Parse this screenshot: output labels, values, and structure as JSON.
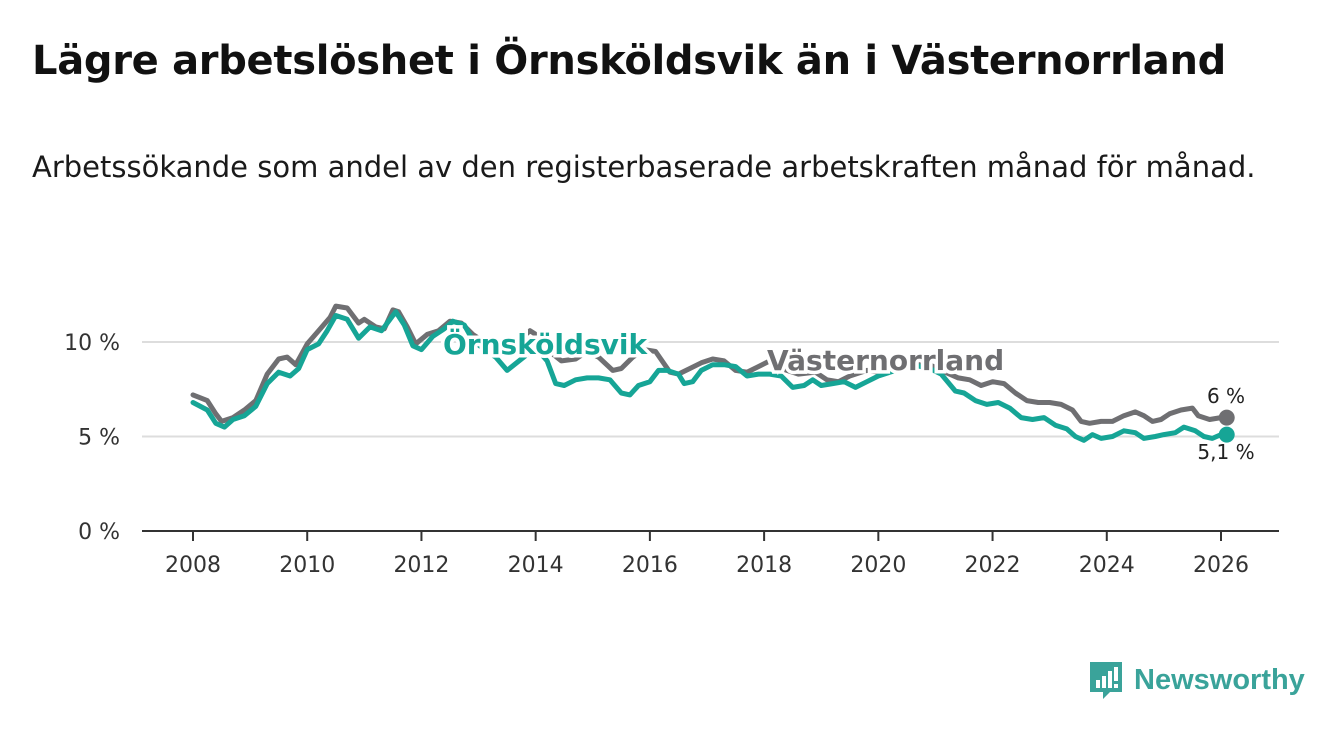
{
  "title": "Lägre arbetslöshet i Örnsköldsvik än i Västernorrland",
  "subtitle": "Arbetssökande som andel av den registerbaserade arbetskraften månad för månad.",
  "colors": {
    "ornskoldsvik": "#16a596",
    "vasternorrland": "#6f6f72",
    "grid": "#dddddd",
    "axis": "#333333",
    "logo": "#3aa39a"
  },
  "brand": {
    "name": "Newsworthy",
    "icon": "bar-chart-icon"
  },
  "chart_data": {
    "type": "line",
    "title": "Lägre arbetslöshet i Örnsköldsvik än i Västernorrland",
    "subtitle": "Arbetssökande som andel av den registerbaserade arbetskraften månad för månad.",
    "xlabel": "",
    "ylabel": "",
    "xlim": [
      2007.7,
      2027
    ],
    "ylim": [
      0,
      12
    ],
    "x_ticks": [
      2008,
      2010,
      2012,
      2014,
      2016,
      2018,
      2020,
      2022,
      2024,
      2026
    ],
    "x_tick_labels": [
      "2008",
      "2010",
      "2012",
      "2014",
      "2016",
      "2018",
      "2020",
      "2022",
      "2024",
      "2026"
    ],
    "y_ticks": [
      0,
      5,
      10
    ],
    "y_tick_labels": [
      "0 %",
      "5 %",
      "10 %"
    ],
    "grid": true,
    "series": [
      {
        "name": "Västernorrland",
        "label": "Västernorrland",
        "end_label": "6 %",
        "points": [
          [
            2008.0,
            7.2
          ],
          [
            2008.25,
            6.9
          ],
          [
            2008.4,
            6.2
          ],
          [
            2008.5,
            5.8
          ],
          [
            2008.7,
            6.0
          ],
          [
            2008.9,
            6.4
          ],
          [
            2009.1,
            6.9
          ],
          [
            2009.3,
            8.3
          ],
          [
            2009.5,
            9.1
          ],
          [
            2009.65,
            9.2
          ],
          [
            2009.8,
            8.8
          ],
          [
            2010.0,
            9.9
          ],
          [
            2010.2,
            10.6
          ],
          [
            2010.4,
            11.3
          ],
          [
            2010.5,
            11.9
          ],
          [
            2010.7,
            11.8
          ],
          [
            2010.9,
            11.0
          ],
          [
            2011.0,
            11.2
          ],
          [
            2011.2,
            10.8
          ],
          [
            2011.35,
            10.7
          ],
          [
            2011.5,
            11.7
          ],
          [
            2011.6,
            11.6
          ],
          [
            2011.75,
            10.8
          ],
          [
            2011.9,
            9.9
          ],
          [
            2012.1,
            10.4
          ],
          [
            2012.3,
            10.6
          ],
          [
            2012.5,
            11.1
          ],
          [
            2012.7,
            11.0
          ],
          [
            2012.9,
            10.4
          ],
          [
            2013.1,
            10.0
          ],
          [
            2013.3,
            9.5
          ],
          [
            2013.6,
            9.8
          ],
          [
            2013.9,
            10.6
          ],
          [
            2014.0,
            10.4
          ],
          [
            2014.2,
            9.6
          ],
          [
            2014.45,
            9.0
          ],
          [
            2014.7,
            9.1
          ],
          [
            2014.9,
            9.5
          ],
          [
            2015.1,
            9.2
          ],
          [
            2015.35,
            8.5
          ],
          [
            2015.5,
            8.6
          ],
          [
            2015.7,
            9.2
          ],
          [
            2015.9,
            9.6
          ],
          [
            2016.1,
            9.5
          ],
          [
            2016.35,
            8.4
          ],
          [
            2016.5,
            8.3
          ],
          [
            2016.7,
            8.6
          ],
          [
            2016.9,
            8.9
          ],
          [
            2017.1,
            9.1
          ],
          [
            2017.3,
            9.0
          ],
          [
            2017.5,
            8.5
          ],
          [
            2017.7,
            8.4
          ],
          [
            2017.9,
            8.7
          ],
          [
            2018.1,
            9.0
          ],
          [
            2018.3,
            8.6
          ],
          [
            2018.6,
            8.3
          ],
          [
            2018.9,
            8.4
          ],
          [
            2019.1,
            8.0
          ],
          [
            2019.3,
            7.9
          ],
          [
            2019.5,
            8.2
          ],
          [
            2019.8,
            8.5
          ],
          [
            2020.0,
            8.4
          ],
          [
            2020.3,
            8.7
          ],
          [
            2020.6,
            9.0
          ],
          [
            2020.9,
            8.8
          ],
          [
            2021.1,
            8.5
          ],
          [
            2021.4,
            8.1
          ],
          [
            2021.6,
            8.0
          ],
          [
            2021.8,
            7.7
          ],
          [
            2022.0,
            7.9
          ],
          [
            2022.2,
            7.8
          ],
          [
            2022.4,
            7.3
          ],
          [
            2022.6,
            6.9
          ],
          [
            2022.8,
            6.8
          ],
          [
            2023.0,
            6.8
          ],
          [
            2023.2,
            6.7
          ],
          [
            2023.4,
            6.4
          ],
          [
            2023.55,
            5.8
          ],
          [
            2023.7,
            5.7
          ],
          [
            2023.9,
            5.8
          ],
          [
            2024.1,
            5.8
          ],
          [
            2024.3,
            6.1
          ],
          [
            2024.5,
            6.3
          ],
          [
            2024.65,
            6.1
          ],
          [
            2024.8,
            5.8
          ],
          [
            2024.95,
            5.9
          ],
          [
            2025.1,
            6.2
          ],
          [
            2025.3,
            6.4
          ],
          [
            2025.5,
            6.5
          ],
          [
            2025.6,
            6.1
          ],
          [
            2025.8,
            5.9
          ],
          [
            2026.0,
            6.0
          ],
          [
            2026.1,
            6.0
          ]
        ]
      },
      {
        "name": "Örnsköldsvik",
        "label": "Örnsköldsvik",
        "end_label": "5,1 %",
        "points": [
          [
            2008.0,
            6.8
          ],
          [
            2008.25,
            6.4
          ],
          [
            2008.4,
            5.7
          ],
          [
            2008.55,
            5.5
          ],
          [
            2008.7,
            5.9
          ],
          [
            2008.9,
            6.1
          ],
          [
            2009.1,
            6.6
          ],
          [
            2009.3,
            7.8
          ],
          [
            2009.5,
            8.4
          ],
          [
            2009.7,
            8.2
          ],
          [
            2009.85,
            8.6
          ],
          [
            2010.0,
            9.6
          ],
          [
            2010.2,
            9.9
          ],
          [
            2010.35,
            10.6
          ],
          [
            2010.5,
            11.4
          ],
          [
            2010.7,
            11.2
          ],
          [
            2010.9,
            10.2
          ],
          [
            2011.1,
            10.8
          ],
          [
            2011.3,
            10.6
          ],
          [
            2011.55,
            11.6
          ],
          [
            2011.7,
            10.9
          ],
          [
            2011.85,
            9.8
          ],
          [
            2012.0,
            9.6
          ],
          [
            2012.2,
            10.3
          ],
          [
            2012.4,
            10.7
          ],
          [
            2012.55,
            11.1
          ],
          [
            2012.75,
            10.9
          ],
          [
            2012.9,
            10.1
          ],
          [
            2013.1,
            9.6
          ],
          [
            2013.3,
            9.2
          ],
          [
            2013.5,
            8.5
          ],
          [
            2013.75,
            9.1
          ],
          [
            2014.0,
            9.7
          ],
          [
            2014.2,
            9.0
          ],
          [
            2014.35,
            7.8
          ],
          [
            2014.5,
            7.7
          ],
          [
            2014.7,
            8.0
          ],
          [
            2014.9,
            8.1
          ],
          [
            2015.1,
            8.1
          ],
          [
            2015.3,
            8.0
          ],
          [
            2015.5,
            7.3
          ],
          [
            2015.65,
            7.2
          ],
          [
            2015.8,
            7.7
          ],
          [
            2016.0,
            7.9
          ],
          [
            2016.15,
            8.5
          ],
          [
            2016.3,
            8.5
          ],
          [
            2016.5,
            8.3
          ],
          [
            2016.6,
            7.8
          ],
          [
            2016.75,
            7.9
          ],
          [
            2016.9,
            8.5
          ],
          [
            2017.1,
            8.8
          ],
          [
            2017.3,
            8.8
          ],
          [
            2017.5,
            8.7
          ],
          [
            2017.7,
            8.2
          ],
          [
            2017.9,
            8.3
          ],
          [
            2018.1,
            8.3
          ],
          [
            2018.3,
            8.2
          ],
          [
            2018.5,
            7.6
          ],
          [
            2018.7,
            7.7
          ],
          [
            2018.85,
            8.0
          ],
          [
            2019.0,
            7.7
          ],
          [
            2019.2,
            7.8
          ],
          [
            2019.4,
            7.9
          ],
          [
            2019.6,
            7.6
          ],
          [
            2019.8,
            7.9
          ],
          [
            2020.0,
            8.2
          ],
          [
            2020.3,
            8.5
          ],
          [
            2020.6,
            8.8
          ],
          [
            2020.9,
            8.6
          ],
          [
            2021.1,
            8.3
          ],
          [
            2021.35,
            7.4
          ],
          [
            2021.5,
            7.3
          ],
          [
            2021.7,
            6.9
          ],
          [
            2021.9,
            6.7
          ],
          [
            2022.1,
            6.8
          ],
          [
            2022.3,
            6.5
          ],
          [
            2022.5,
            6.0
          ],
          [
            2022.7,
            5.9
          ],
          [
            2022.9,
            6.0
          ],
          [
            2023.1,
            5.6
          ],
          [
            2023.3,
            5.4
          ],
          [
            2023.45,
            5.0
          ],
          [
            2023.6,
            4.8
          ],
          [
            2023.75,
            5.1
          ],
          [
            2023.9,
            4.9
          ],
          [
            2024.1,
            5.0
          ],
          [
            2024.3,
            5.3
          ],
          [
            2024.5,
            5.2
          ],
          [
            2024.65,
            4.9
          ],
          [
            2024.85,
            5.0
          ],
          [
            2025.0,
            5.1
          ],
          [
            2025.2,
            5.2
          ],
          [
            2025.35,
            5.5
          ],
          [
            2025.55,
            5.3
          ],
          [
            2025.7,
            5.0
          ],
          [
            2025.85,
            4.9
          ],
          [
            2026.0,
            5.1
          ],
          [
            2026.1,
            5.1
          ]
        ]
      }
    ]
  }
}
